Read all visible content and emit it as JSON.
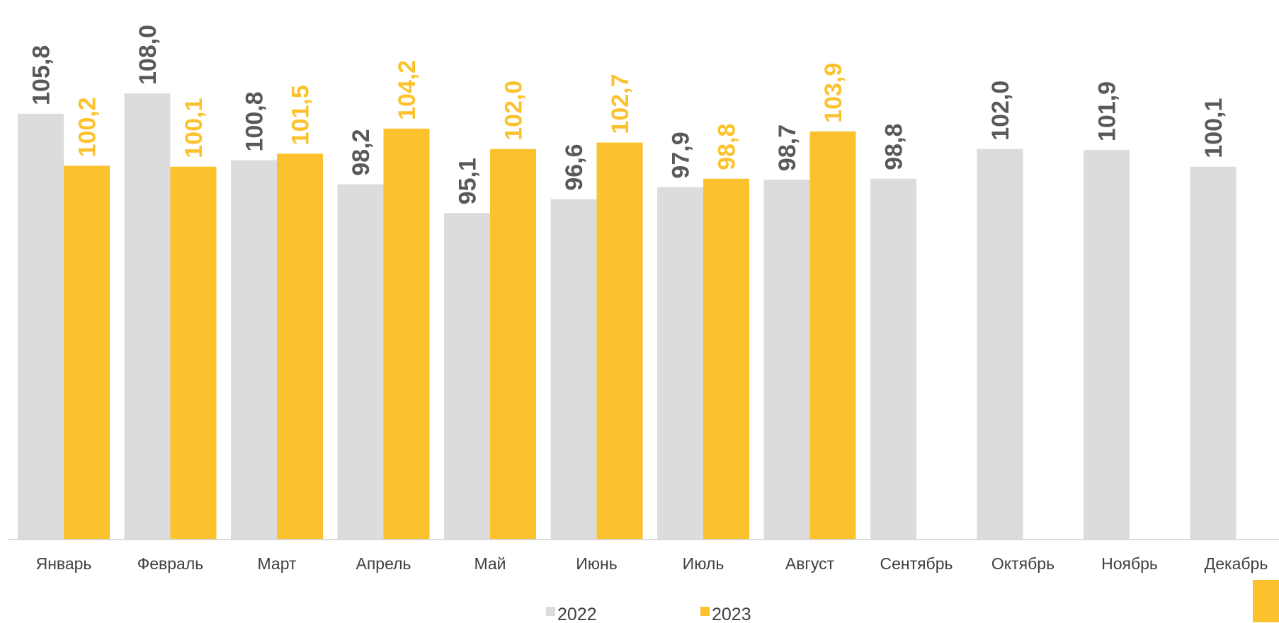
{
  "chart_data": {
    "type": "bar",
    "title": "",
    "xlabel": "",
    "ylabel": "",
    "ylim": [
      60,
      110
    ],
    "grid": false,
    "legend_position": "bottom",
    "categories": [
      "Январь",
      "Февраль",
      "Март",
      "Апрель",
      "Май",
      "Июнь",
      "Июль",
      "Август",
      "Сентябрь",
      "Октябрь",
      "Ноябрь",
      "Декабрь"
    ],
    "series": [
      {
        "name": "2022",
        "color": "#dcdcdc",
        "label_color": "#595959",
        "values": [
          105.8,
          108.0,
          100.8,
          98.2,
          95.1,
          96.6,
          97.9,
          98.7,
          98.8,
          102.0,
          101.9,
          100.1
        ],
        "labels": [
          "105,8",
          "108,0",
          "100,8",
          "98,2",
          "95,1",
          "96,6",
          "97,9",
          "98,7",
          "98,8",
          "102,0",
          "101,9",
          "100,1"
        ]
      },
      {
        "name": "2023",
        "color": "#fcc22d",
        "label_color": "#fcc22d",
        "values": [
          100.2,
          100.1,
          101.5,
          104.2,
          102.0,
          102.7,
          98.8,
          103.9,
          null,
          null,
          null,
          null
        ],
        "labels": [
          "100,2",
          "100,1",
          "101,5",
          "104,2",
          "102,0",
          "102,7",
          "98,8",
          "103,9",
          null,
          null,
          null,
          null
        ]
      }
    ]
  }
}
